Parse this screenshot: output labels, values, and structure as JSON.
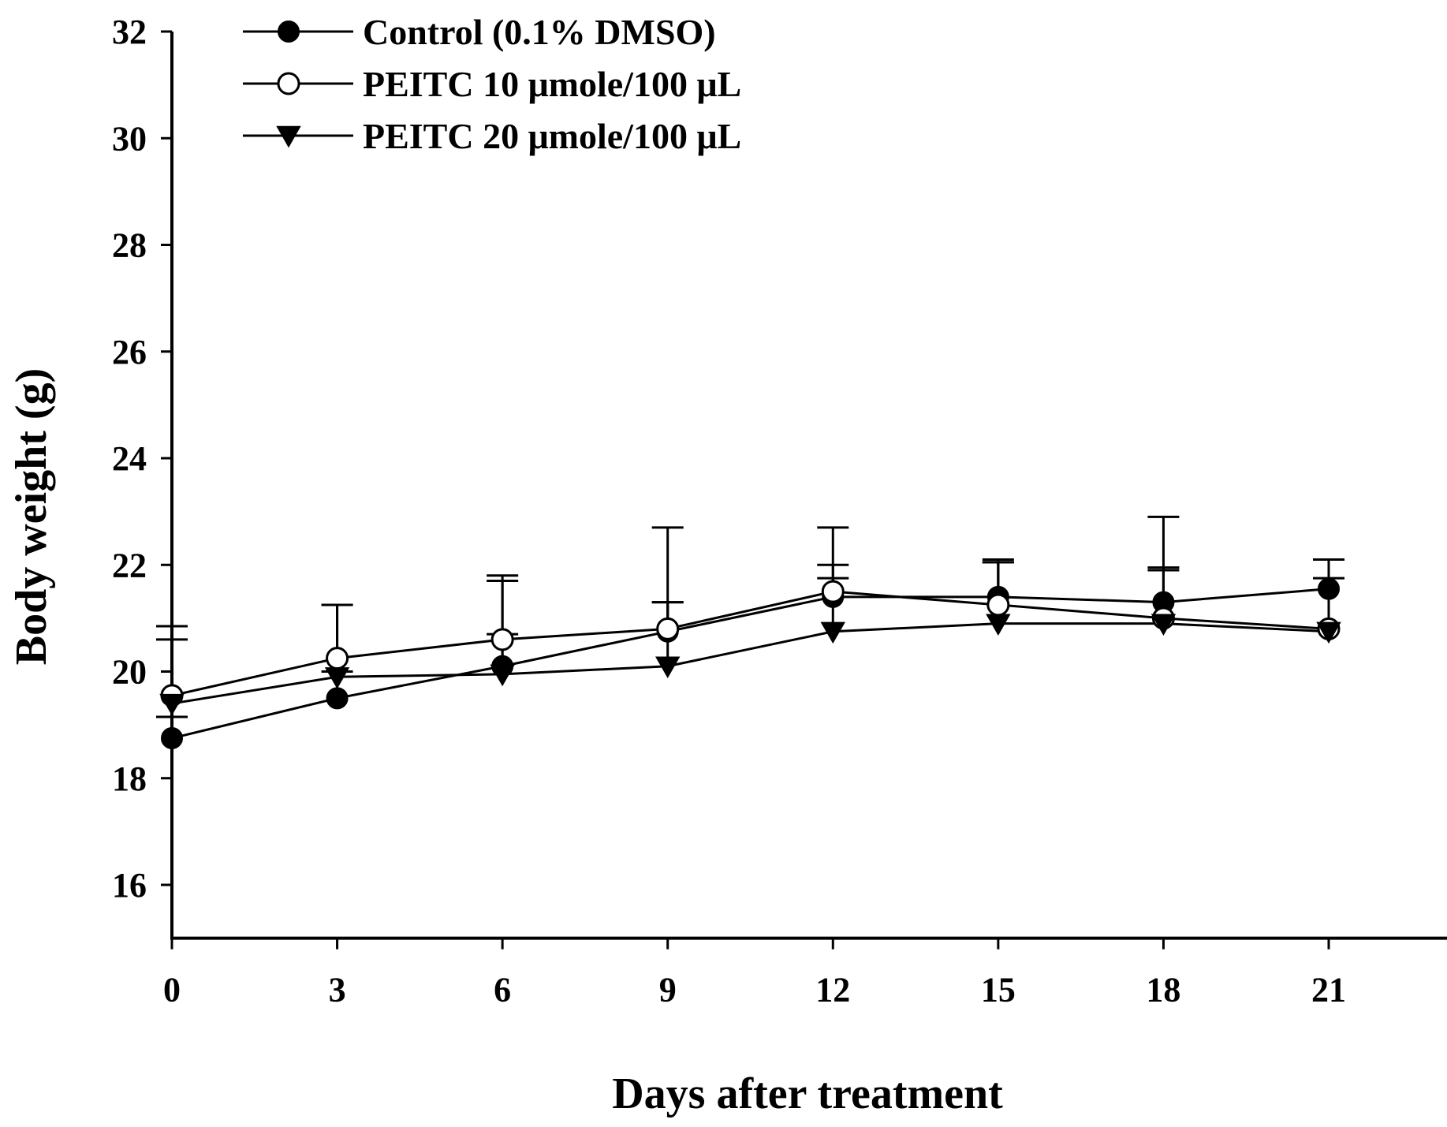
{
  "chart_data": {
    "type": "line",
    "title": "",
    "xlabel": "Days after treatment",
    "ylabel": "Body weight (g)",
    "xlim": [
      0,
      23.5
    ],
    "ylim": [
      15,
      32
    ],
    "x_ticks": [
      0,
      3,
      6,
      9,
      12,
      15,
      18,
      21
    ],
    "x_tick_labels": [
      "0",
      "3",
      "6",
      "9",
      "12",
      "15",
      "18",
      "21"
    ],
    "y_ticks": [
      16,
      18,
      20,
      22,
      24,
      26,
      28,
      30,
      32
    ],
    "y_tick_labels": [
      "16",
      "18",
      "20",
      "22",
      "24",
      "26",
      "28",
      "30",
      "32"
    ],
    "grid": false,
    "legend_position": "top-left",
    "x": [
      0,
      3,
      6,
      9,
      12,
      15,
      18,
      21
    ],
    "series": [
      {
        "name": "Control (0.1% DMSO)",
        "marker": "filled-circle",
        "values": [
          18.75,
          19.5,
          20.1,
          20.75,
          21.4,
          21.4,
          21.3,
          21.55
        ],
        "error": [
          0.4,
          0.5,
          0.6,
          0.55,
          0.6,
          0.65,
          0.65,
          0.55
        ]
      },
      {
        "name": "PEITC 10 μmole/100 μL",
        "marker": "open-circle",
        "values": [
          19.55,
          20.25,
          20.6,
          20.8,
          21.5,
          21.25,
          21.0,
          20.8
        ],
        "error": [
          1.3,
          1.0,
          1.2,
          1.9,
          1.2,
          0.85,
          1.9,
          1.3
        ]
      },
      {
        "name": "PEITC 20 μmole/100 μL",
        "marker": "filled-triangle-down",
        "values": [
          19.4,
          19.9,
          19.95,
          20.1,
          20.75,
          20.9,
          20.9,
          20.75
        ],
        "error": [
          1.2,
          1.35,
          1.75,
          1.2,
          1.0,
          1.15,
          1.0,
          1.0
        ]
      }
    ]
  }
}
